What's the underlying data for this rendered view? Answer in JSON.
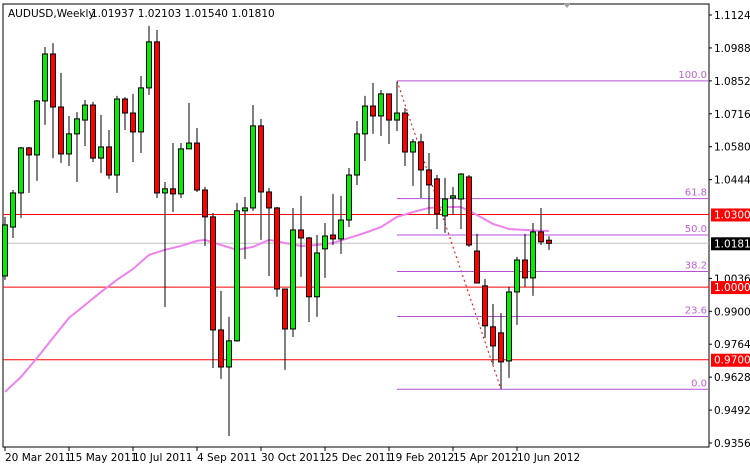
{
  "header": {
    "symbol_timeframe": "AUDUSD,Weekly",
    "ohlc": "1.01937 1.02103 1.01540 1.01810"
  },
  "colors": {
    "bull": "#00ee00",
    "bear": "#ff0000",
    "ma": "#ee82ee",
    "fib": "#b450d8",
    "level_line": "#ff0000",
    "current_price_line": "#c0c0c0"
  },
  "chart_data": {
    "type": "candlestick",
    "title": "AUDUSD,Weekly",
    "ylim": [
      0.9356,
      1.1124
    ],
    "grid": false,
    "y_ticks": [
      "1.11240",
      "1.09880",
      "1.08520",
      "1.07160",
      "1.05800",
      "1.04440",
      "1.00360",
      "0.99000",
      "0.97640",
      "0.96280",
      "0.94920",
      "0.93560"
    ],
    "x_ticks": [
      {
        "index": 0,
        "label": "20 Mar 2011"
      },
      {
        "index": 8,
        "label": "15 May 2011"
      },
      {
        "index": 16,
        "label": "10 Jul 2011"
      },
      {
        "index": 24,
        "label": "4 Sep 2011"
      },
      {
        "index": 32,
        "label": "30 Oct 2011"
      },
      {
        "index": 40,
        "label": "25 Dec 2011"
      },
      {
        "index": 48,
        "label": "19 Feb 2012"
      },
      {
        "index": 56,
        "label": "15 Apr 2012"
      },
      {
        "index": 64,
        "label": "10 Jun 2012"
      }
    ],
    "candles": [
      [
        1.0046,
        1.029,
        1.003,
        1.0257
      ],
      [
        1.0248,
        1.0401,
        1.0203,
        1.0389
      ],
      [
        1.0389,
        1.0579,
        1.0286,
        1.0575
      ],
      [
        1.0575,
        1.0579,
        1.0389,
        1.0546
      ],
      [
        1.0546,
        1.0773,
        1.0439,
        1.0769
      ],
      [
        1.0769,
        1.0992,
        1.067,
        1.0963
      ],
      [
        1.0963,
        1.1008,
        1.0533,
        1.0744
      ],
      [
        1.0744,
        1.0885,
        1.0513,
        1.055
      ],
      [
        1.055,
        1.0707,
        1.05,
        1.0633
      ],
      [
        1.0633,
        1.0723,
        1.0434,
        1.0695
      ],
      [
        1.069,
        1.0773,
        1.0583,
        1.0752
      ],
      [
        1.0752,
        1.0765,
        1.0517,
        1.0533
      ],
      [
        1.0533,
        1.0711,
        1.0471,
        1.0579
      ],
      [
        1.0579,
        1.0649,
        1.0447,
        1.0463
      ],
      [
        1.0463,
        1.079,
        1.0389,
        1.0777
      ],
      [
        1.0777,
        1.0785,
        1.0649,
        1.0719
      ],
      [
        1.0719,
        1.0798,
        1.0517,
        1.0641
      ],
      [
        1.0641,
        1.0872,
        1.0554,
        1.0823
      ],
      [
        1.0823,
        1.1079,
        1.0794,
        1.1013
      ],
      [
        1.1013,
        1.1062,
        1.0368,
        1.0389
      ],
      [
        1.0389,
        1.0434,
        0.9918,
        1.0406
      ],
      [
        1.0406,
        1.0595,
        1.031,
        1.0385
      ],
      [
        1.0385,
        1.0595,
        1.0368,
        1.0571
      ],
      [
        1.0571,
        1.0761,
        1.0571,
        1.0595
      ],
      [
        1.0595,
        1.0657,
        1.0393,
        1.0401
      ],
      [
        1.0401,
        1.0414,
        1.017,
        1.029
      ],
      [
        1.029,
        1.0306,
        0.9666,
        0.9823
      ],
      [
        0.9823,
        0.9984,
        0.9621,
        0.967
      ],
      [
        0.967,
        0.9877,
        0.9385,
        0.9778
      ],
      [
        0.9778,
        1.0348,
        0.9774,
        1.0315
      ],
      [
        1.0315,
        1.0372,
        1.0116,
        1.0327
      ],
      [
        1.0327,
        1.0752,
        1.0315,
        1.0666
      ],
      [
        1.0666,
        1.0695,
        1.0195,
        1.0393
      ],
      [
        1.0393,
        1.041,
        1.0046,
        1.0327
      ],
      [
        1.0327,
        1.0331,
        0.996,
        0.9992
      ],
      [
        0.9992,
        0.9992,
        0.9658,
        0.9827
      ],
      [
        0.9827,
        1.0327,
        0.9794,
        1.0236
      ],
      [
        1.0236,
        1.0377,
        1.0042,
        1.0203
      ],
      [
        1.0203,
        1.0207,
        0.9856,
        0.996
      ],
      [
        0.996,
        1.0215,
        0.9877,
        1.0141
      ],
      [
        1.0158,
        1.0265,
        1.0038,
        1.0211
      ],
      [
        1.0215,
        1.0385,
        1.0174,
        1.0199
      ],
      [
        1.0199,
        1.0377,
        1.0137,
        1.0277
      ],
      [
        1.0277,
        1.0492,
        1.0248,
        1.0463
      ],
      [
        1.0463,
        1.0686,
        1.0422,
        1.0633
      ],
      [
        1.0633,
        1.079,
        1.0521,
        1.0748
      ],
      [
        1.0748,
        1.0843,
        1.0633,
        1.0707
      ],
      [
        1.0707,
        1.0814,
        1.0624,
        1.0798
      ],
      [
        1.0798,
        1.0798,
        1.0591,
        1.069
      ],
      [
        1.069,
        1.0847,
        1.0645,
        1.0719
      ],
      [
        1.0719,
        1.074,
        1.05,
        1.0558
      ],
      [
        1.0558,
        1.0612,
        1.0418,
        1.06
      ],
      [
        1.06,
        1.0633,
        1.0368,
        1.0484
      ],
      [
        1.0484,
        1.0554,
        1.0298,
        1.0422
      ],
      [
        1.0447,
        1.0463,
        1.024,
        1.0302
      ],
      [
        1.0294,
        1.0451,
        1.0224,
        1.0364
      ],
      [
        1.0368,
        1.0414,
        1.0298,
        1.0377
      ],
      [
        1.0364,
        1.0471,
        1.024,
        1.0467
      ],
      [
        1.0455,
        1.0463,
        1.0166,
        1.0174
      ],
      [
        1.0149,
        1.022,
        1.0017,
        1.0017
      ],
      [
        1.0005,
        1.0034,
        0.979,
        0.984
      ],
      [
        0.9836,
        0.993,
        0.9679,
        0.9757
      ],
      [
        0.9811,
        0.9893,
        0.9579,
        0.9691
      ],
      [
        0.9695,
        1.0001,
        0.9625,
        0.998
      ],
      [
        0.998,
        1.0125,
        0.9844,
        1.0112
      ],
      [
        1.0112,
        1.022,
        1.0001,
        1.0038
      ],
      [
        1.0038,
        1.0265,
        0.9964,
        1.0228
      ],
      [
        1.0228,
        1.0327,
        1.0174,
        1.0187
      ],
      [
        1.01937,
        1.02103,
        1.0154,
        1.0181
      ]
    ],
    "moving_average": [
      [
        0,
        0.9567
      ],
      [
        2,
        0.9629
      ],
      [
        4,
        0.9707
      ],
      [
        6,
        0.979
      ],
      [
        8,
        0.9873
      ],
      [
        10,
        0.9926
      ],
      [
        12,
        0.998
      ],
      [
        14,
        1.003
      ],
      [
        16,
        1.0075
      ],
      [
        18,
        1.0133
      ],
      [
        20,
        1.0154
      ],
      [
        22,
        1.017
      ],
      [
        24,
        1.0191
      ],
      [
        25,
        1.0195
      ],
      [
        27,
        1.0174
      ],
      [
        29,
        1.0154
      ],
      [
        31,
        1.0166
      ],
      [
        33,
        1.0195
      ],
      [
        35,
        1.0182
      ],
      [
        37,
        1.017
      ],
      [
        39,
        1.0174
      ],
      [
        41,
        1.0182
      ],
      [
        43,
        1.0203
      ],
      [
        45,
        1.0224
      ],
      [
        47,
        1.0248
      ],
      [
        49,
        1.029
      ],
      [
        51,
        1.031
      ],
      [
        53,
        1.0327
      ],
      [
        55,
        1.0331
      ],
      [
        57,
        1.0331
      ],
      [
        59,
        1.0298
      ],
      [
        61,
        1.0261
      ],
      [
        63,
        1.024
      ],
      [
        65,
        1.0236
      ],
      [
        67,
        1.0232
      ],
      [
        68,
        1.0232
      ]
    ],
    "fibonacci": {
      "high": 1.0852,
      "low": 0.9578,
      "high_index": 49,
      "low_index": 62,
      "levels": [
        {
          "ratio": 1.0,
          "label": "100.0"
        },
        {
          "ratio": 0.618,
          "label": "61.8"
        },
        {
          "ratio": 0.5,
          "label": "50.0"
        },
        {
          "ratio": 0.382,
          "label": "38.2"
        },
        {
          "ratio": 0.236,
          "label": "23.6"
        },
        {
          "ratio": 0.0,
          "label": "0.0"
        }
      ]
    },
    "horizontal_levels": [
      {
        "price": 1.03,
        "label": "1.03000"
      },
      {
        "price": 1.0,
        "label": "1.00000"
      },
      {
        "price": 0.97,
        "label": "0.97000"
      }
    ],
    "current_price": {
      "price": 1.0181,
      "label": "1.01810"
    }
  }
}
